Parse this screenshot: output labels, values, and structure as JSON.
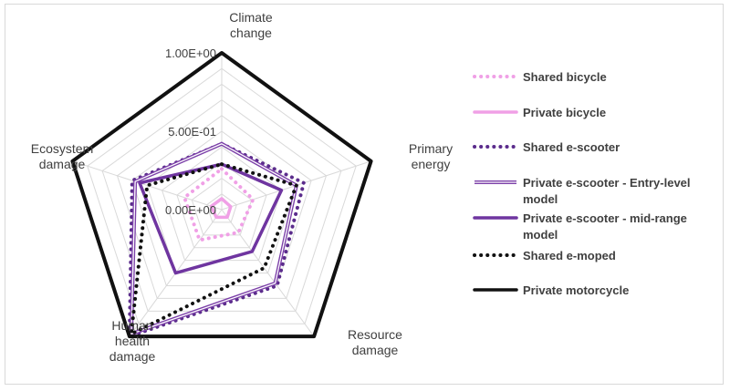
{
  "chart_data": {
    "type": "radar",
    "axes": [
      "Climate change",
      "Primary energy",
      "Resource damage",
      "Human health damage",
      "Ecosystem damage"
    ],
    "axis_label_lines": [
      [
        "Climate",
        "change"
      ],
      [
        "Primary",
        "energy"
      ],
      [
        "Resource",
        "damage"
      ],
      [
        "Human",
        "health",
        "damage"
      ],
      [
        "Ecosystem",
        "damage"
      ]
    ],
    "rlim": [
      0,
      1
    ],
    "tick_labels": [
      "1.00E+00",
      "5.00E-01",
      "0.00E+00"
    ],
    "gridlines": true,
    "legend_position": "right",
    "series": [
      {
        "name": "Shared bicycle",
        "color": "#f0a0e6",
        "style": "dotted",
        "values": [
          0.26,
          0.21,
          0.18,
          0.24,
          0.25
        ]
      },
      {
        "name": "Private bicycle",
        "color": "#f0a0e6",
        "style": "solid",
        "values": [
          0.07,
          0.06,
          0.06,
          0.06,
          0.07
        ]
      },
      {
        "name": "Shared e-scooter",
        "color": "#5b2c8c",
        "style": "dotted",
        "values": [
          0.42,
          0.55,
          0.6,
          1.0,
          0.6
        ]
      },
      {
        "name": "Private e-scooter - Entry-level model",
        "color": "#7b3fa8",
        "style": "double",
        "values": [
          0.42,
          0.5,
          0.58,
          0.98,
          0.58
        ]
      },
      {
        "name": "Private e-scooter - mid-range model",
        "color": "#6f35a0",
        "style": "solid",
        "values": [
          0.29,
          0.4,
          0.33,
          0.5,
          0.55
        ]
      },
      {
        "name": "Shared e-moped",
        "color": "#111111",
        "style": "dotted",
        "values": [
          0.29,
          0.5,
          0.46,
          0.98,
          0.5
        ]
      },
      {
        "name": "Private motorcycle",
        "color": "#111111",
        "style": "solid",
        "values": [
          1.0,
          1.0,
          1.0,
          1.0,
          1.0
        ]
      }
    ],
    "legend_label_lines": [
      [
        "Shared bicycle"
      ],
      [
        "Private bicycle"
      ],
      [
        "Shared e-scooter"
      ],
      [
        "Private e-scooter - Entry-level",
        "model"
      ],
      [
        "Private e-scooter - mid-range",
        "model"
      ],
      [
        "Shared e-moped"
      ],
      [
        "Private motorcycle"
      ]
    ]
  }
}
